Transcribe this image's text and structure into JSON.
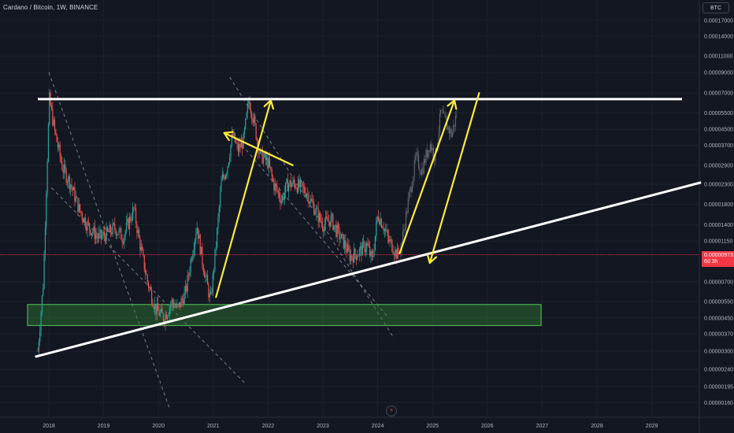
{
  "header": {
    "symbol_title": "Cardano / Bitcoin, 1W, BINANCE",
    "unit_label": "BTC"
  },
  "price_badge": {
    "price": "0.00000973",
    "countdown": "6d 3h"
  },
  "colors": {
    "background": "#131722",
    "up": "#26a69a",
    "down": "#ef5350",
    "projection": "#787b86",
    "resistance": "#ffffff",
    "trend": "#ffffff",
    "arrows": "#ffeb3b",
    "zone_fill": "#2e7d32",
    "zone_border": "#4caf50",
    "current_price": "#f23645"
  },
  "chart_data": {
    "type": "candlestick",
    "title": "Cardano / Bitcoin, 1W, BINANCE",
    "y_scale": "log",
    "y_unit": "BTC",
    "y_ticks": [
      "0.00017000",
      "0.00014000",
      "0.00011000",
      "0.00009000",
      "0.00007000",
      "0.00005500",
      "0.00004500",
      "0.00003700",
      "0.00002900",
      "0.00002300",
      "0.00001800",
      "0.00001400",
      "0.00001150",
      "0.00000700",
      "0.00000550",
      "0.00000450",
      "0.00000370",
      "0.00000300",
      "0.00000240",
      "0.00000195",
      "0.00000160"
    ],
    "x_ticks": [
      "2018",
      "2019",
      "2020",
      "2021",
      "2022",
      "2023",
      "2024",
      "2025",
      "2026",
      "2027",
      "2028",
      "2029"
    ],
    "current_price": 9.73e-06,
    "price_path": [
      [
        2017.8,
        3e-06
      ],
      [
        2017.9,
        7e-06
      ],
      [
        2017.96,
        2.5e-05
      ],
      [
        2018.01,
        6.5e-05
      ],
      [
        2018.1,
        4.5e-05
      ],
      [
        2018.25,
        2.8e-05
      ],
      [
        2018.4,
        2.3e-05
      ],
      [
        2018.55,
        1.7e-05
      ],
      [
        2018.7,
        1.4e-05
      ],
      [
        2018.9,
        1.2e-05
      ],
      [
        2019.05,
        1.25e-05
      ],
      [
        2019.2,
        1.35e-05
      ],
      [
        2019.35,
        1.2e-05
      ],
      [
        2019.55,
        1.7e-05
      ],
      [
        2019.65,
        1.15e-05
      ],
      [
        2019.8,
        7e-06
      ],
      [
        2019.95,
        5e-06
      ],
      [
        2020.1,
        4.5e-06
      ],
      [
        2020.25,
        5.5e-06
      ],
      [
        2020.35,
        5e-06
      ],
      [
        2020.5,
        6.2e-06
      ],
      [
        2020.6,
        9.5e-06
      ],
      [
        2020.7,
        1.4e-05
      ],
      [
        2020.8,
        9e-06
      ],
      [
        2020.95,
        5.5e-06
      ],
      [
        2021.05,
        1.1e-05
      ],
      [
        2021.15,
        2.4e-05
      ],
      [
        2021.25,
        2.8e-05
      ],
      [
        2021.35,
        4.2e-05
      ],
      [
        2021.45,
        3.5e-05
      ],
      [
        2021.55,
        3.9e-05
      ],
      [
        2021.65,
        6.5e-05
      ],
      [
        2021.75,
        4.8e-05
      ],
      [
        2021.85,
        3.3e-05
      ],
      [
        2022.0,
        3e-05
      ],
      [
        2022.1,
        2.3e-05
      ],
      [
        2022.25,
        1.9e-05
      ],
      [
        2022.35,
        2.3e-05
      ],
      [
        2022.5,
        2.3e-05
      ],
      [
        2022.7,
        2.1e-05
      ],
      [
        2022.85,
        1.7e-05
      ],
      [
        2023.0,
        1.4e-05
      ],
      [
        2023.15,
        1.5e-05
      ],
      [
        2023.25,
        1.3e-05
      ],
      [
        2023.4,
        1.1e-05
      ],
      [
        2023.5,
        9.5e-06
      ],
      [
        2023.65,
        1e-05
      ],
      [
        2023.8,
        1.1e-05
      ],
      [
        2023.9,
        9e-06
      ],
      [
        2024.0,
        1.6e-05
      ],
      [
        2024.1,
        1.4e-05
      ],
      [
        2024.2,
        1.15e-05
      ],
      [
        2024.26,
        1.1e-05
      ],
      [
        2024.32,
        1e-05
      ],
      [
        2024.38,
        9.7e-06
      ]
    ],
    "projection_path": [
      [
        2024.42,
        1.05e-05
      ],
      [
        2024.55,
        1.8e-05
      ],
      [
        2024.7,
        3.2e-05
      ],
      [
        2024.8,
        2.7e-05
      ],
      [
        2024.95,
        3.8e-05
      ],
      [
        2025.05,
        3.2e-05
      ],
      [
        2025.15,
        5.5e-05
      ],
      [
        2025.25,
        4.8e-05
      ],
      [
        2025.35,
        4.2e-05
      ],
      [
        2025.45,
        5.6e-05
      ]
    ],
    "annotations": {
      "resistance_level": 6.5e-05,
      "support_zone": [
        4.1e-06,
        5.3e-06
      ],
      "trendline": [
        [
          2017.75,
          2.8e-06
        ],
        [
          2029.9,
          2.35e-05
        ]
      ],
      "descending_channels": [
        [
          [
            2018.0,
            9e-05
          ],
          [
            2020.2,
            1.5e-06
          ]
        ],
        [
          [
            2018.05,
            2.2e-05
          ],
          [
            2021.6,
            2e-06
          ]
        ],
        [
          [
            2021.3,
            8.5e-05
          ],
          [
            2024.3,
            3.5e-06
          ]
        ],
        [
          [
            2021.6,
            3.5e-05
          ],
          [
            2024.2,
            4.5e-06
          ]
        ]
      ],
      "up_arrows": [
        [
          [
            2021.05,
            5.8e-06
          ],
          [
            2022.05,
            6.4e-05
          ]
        ],
        [
          [
            2024.4,
            9.9e-06
          ],
          [
            2025.4,
            6.4e-05
          ]
        ]
      ],
      "pointer_arrows": [
        [
          [
            2022.45,
            2.9e-05
          ],
          [
            2021.2,
            4.3e-05
          ]
        ],
        [
          [
            2025.85,
            7e-05
          ],
          [
            2024.95,
            8.8e-06
          ]
        ]
      ]
    }
  }
}
